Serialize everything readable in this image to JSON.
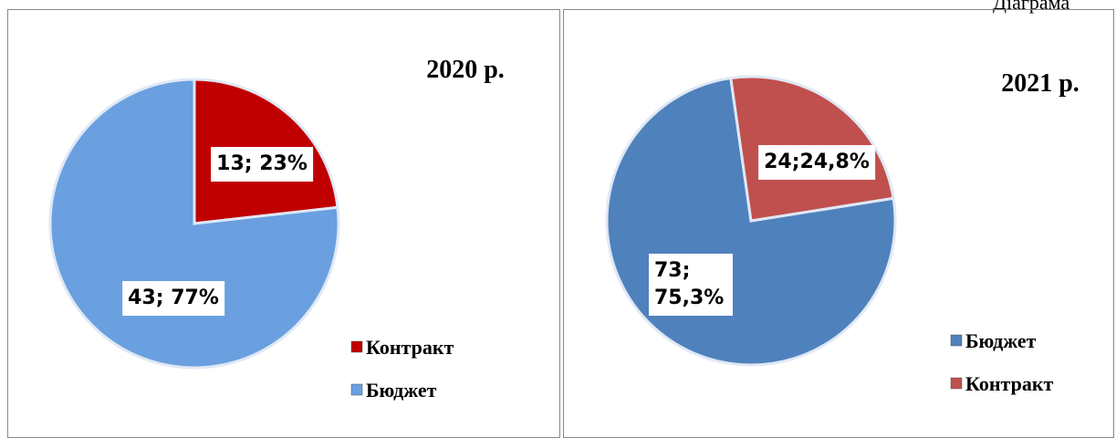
{
  "caption": "Діаграма",
  "chart_data": [
    {
      "type": "pie",
      "title": "2020 р.",
      "categories": [
        "Контракт",
        "Бюджет"
      ],
      "values": [
        13,
        43
      ],
      "value_labels": [
        "13; 23%",
        "43; 77%"
      ],
      "colors": [
        "#c00000",
        "#6a9fe0"
      ]
    },
    {
      "type": "pie",
      "title": "2021 р.",
      "categories": [
        "Бюджет",
        "Контракт"
      ],
      "values": [
        73,
        24
      ],
      "value_labels": [
        "73; 75,3%",
        "24;24,8%"
      ],
      "colors": [
        "#4f81bd",
        "#c0504d"
      ]
    }
  ]
}
